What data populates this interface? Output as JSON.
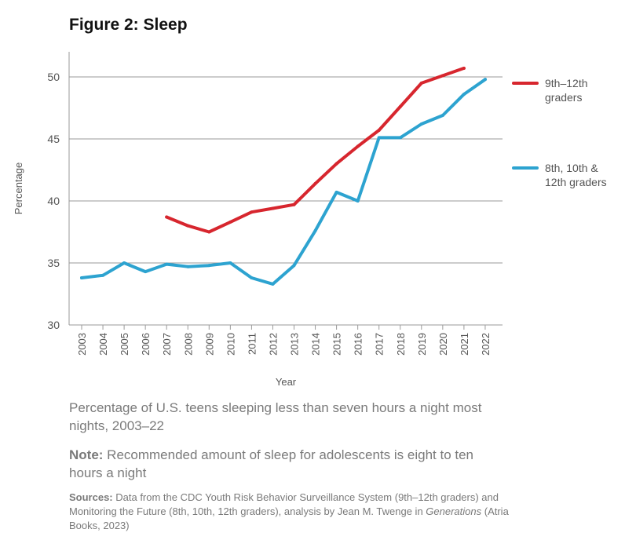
{
  "chart_data": {
    "type": "line",
    "title": "Figure 2: Sleep",
    "xlabel": "Year",
    "ylabel": "Percentage",
    "ylim": [
      30,
      52
    ],
    "yticks": [
      30,
      35,
      40,
      45,
      50
    ],
    "categories": [
      "2003",
      "2004",
      "2005",
      "2006",
      "2007",
      "2008",
      "2009",
      "2010",
      "2011",
      "2012",
      "2013",
      "2014",
      "2015",
      "2016",
      "2017",
      "2018",
      "2019",
      "2020",
      "2021",
      "2022"
    ],
    "series": [
      {
        "name": "9th–12th graders",
        "color": "#d7262e",
        "values": [
          null,
          null,
          null,
          null,
          38.7,
          38.0,
          37.5,
          38.3,
          39.1,
          39.4,
          39.7,
          41.4,
          43.0,
          44.4,
          45.7,
          47.6,
          49.5,
          50.1,
          50.7,
          null
        ]
      },
      {
        "name": "8th, 10th & 12th graders",
        "color": "#2da3d0",
        "values": [
          33.8,
          34.0,
          35.0,
          34.3,
          34.9,
          34.7,
          34.8,
          35.0,
          33.8,
          33.3,
          34.8,
          37.6,
          40.7,
          40.0,
          45.1,
          45.1,
          46.2,
          46.9,
          48.6,
          49.8
        ]
      }
    ]
  },
  "caption": "Percentage of U.S. teens sleeping less than seven hours a night most nights, 2003–22",
  "note": {
    "label": "Note:",
    "text": " Recommended amount of sleep for adolescents is eight to ten hours a night"
  },
  "sources": {
    "label": "Sources:",
    "text_before": " Data from the CDC Youth Risk Behavior Surveillance System (9th–12th graders) and Monitoring the Future (8th, 10th, 12th graders), analysis by Jean M. Twenge in ",
    "book": "Generations",
    "text_after": " (Atria Books, 2023)"
  }
}
